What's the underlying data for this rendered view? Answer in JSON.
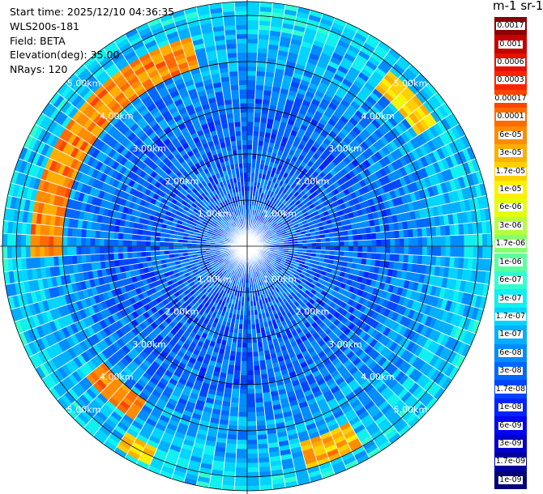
{
  "header": {
    "start_time": "Start time: 2025/12/10 04:36:35",
    "instrument": "WLS200s-181",
    "field": "Field: BETA",
    "elevation": "Elevation(deg): 35.00",
    "nrays": "NRays: 120"
  },
  "colorbar": {
    "title": "m-1 sr-1",
    "labels": [
      "0.0017",
      "0.001",
      "0.0006",
      "0.0003",
      "0.00017",
      "0.0001",
      "6e-05",
      "3e-05",
      "1.7e-05",
      "1e-05",
      "6e-06",
      "3e-06",
      "1.7e-06",
      "1e-06",
      "6e-07",
      "3e-07",
      "1.7e-07",
      "1e-07",
      "6e-08",
      "3e-08",
      "1.7e-08",
      "1e-08",
      "6e-09",
      "3e-09",
      "1.7e-09",
      "1e-09"
    ],
    "colors": [
      "#8b0000",
      "#c50000",
      "#e81000",
      "#ff2200",
      "#ff4500",
      "#ff6a00",
      "#ff8c00",
      "#ffae00",
      "#ffd000",
      "#ffef00",
      "#e2ff10",
      "#b4ff3e",
      "#86ff6e",
      "#5affa0",
      "#30ffd0",
      "#10f0f0",
      "#00d4ff",
      "#00b0ff",
      "#008cff",
      "#0068ff",
      "#0046ff",
      "#0024ff",
      "#0006f0",
      "#0000c8",
      "#00009e",
      "#000078"
    ]
  },
  "chart_data": {
    "type": "heatmap",
    "projection": "polar PPI",
    "field": "BETA",
    "units": "m-1 sr-1",
    "elevation_deg": 35.0,
    "n_rays": 120,
    "max_range_km": 5.3,
    "range_rings_km": [
      1,
      2,
      3,
      4,
      5
    ],
    "range_ring_labels": [
      "1.00km",
      "2.00km",
      "3.00km",
      "4.00km",
      "5.00km"
    ],
    "colorscale": "log",
    "value_range": [
      1e-09,
      0.0017
    ],
    "background_level": 3e-08,
    "features": [
      {
        "range_km": [
          4.0,
          4.7
        ],
        "azimuth_deg": [
          268,
          345
        ],
        "level": 6e-05
      },
      {
        "range_km": [
          4.0,
          4.5
        ],
        "azimuth_deg": [
          212,
          232
        ],
        "level": 6e-05
      },
      {
        "range_km": [
          4.4,
          5.0
        ],
        "azimuth_deg": [
          150,
          165
        ],
        "level": 3e-05
      },
      {
        "range_km": [
          4.8,
          5.2
        ],
        "azimuth_deg": [
          205,
          212
        ],
        "level": 1.7e-05
      },
      {
        "range_km": [
          4.4,
          4.9
        ],
        "azimuth_deg": [
          40,
          58
        ],
        "level": 1.7e-05
      },
      {
        "range_km": [
          4.7,
          5.1
        ],
        "azimuth_deg": [
          0,
          20
        ],
        "level": 3e-07
      }
    ]
  }
}
